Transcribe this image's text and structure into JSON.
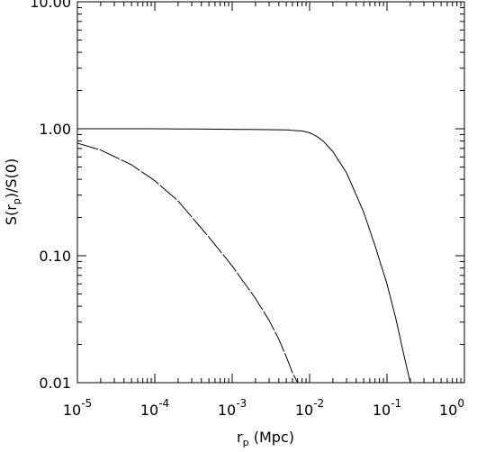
{
  "chart_data": {
    "type": "line",
    "title": "",
    "xlabel_main": "r",
    "xlabel_sub": "p",
    "xlabel_tail": " (Mpc)",
    "ylabel_lead": "S(r",
    "ylabel_sub": "p",
    "ylabel_tail": ")/S(0)",
    "xscale": "log",
    "yscale": "log",
    "xlim": [
      1e-05,
      1
    ],
    "ylim": [
      0.01,
      10
    ],
    "grid": false,
    "x_ticks": [
      1e-05,
      0.0001,
      0.001,
      0.01,
      0.1,
      1
    ],
    "x_tick_labels": [
      {
        "base": "10",
        "exp": "-5"
      },
      {
        "base": "10",
        "exp": "-4"
      },
      {
        "base": "10",
        "exp": "-3"
      },
      {
        "base": "10",
        "exp": "-2"
      },
      {
        "base": "10",
        "exp": "-1"
      },
      {
        "base": "10",
        "exp": "0"
      }
    ],
    "y_ticks": [
      0.01,
      0.1,
      1,
      10
    ],
    "y_tick_labels": [
      "0.01",
      "0.10",
      "1.00",
      "10.00"
    ],
    "series": [
      {
        "style": "solid",
        "x": [
          1e-05,
          0.0001,
          0.001,
          0.005,
          0.008,
          0.01,
          0.012,
          0.015,
          0.02,
          0.03,
          0.05,
          0.07,
          0.1,
          0.13,
          0.16,
          0.2
        ],
        "y": [
          1.0,
          1.0,
          0.99,
          0.98,
          0.96,
          0.93,
          0.88,
          0.8,
          0.66,
          0.45,
          0.22,
          0.12,
          0.06,
          0.032,
          0.018,
          0.01
        ]
      },
      {
        "style": "dashed",
        "x": [
          1e-05,
          2e-05,
          5e-05,
          0.0001,
          0.0002,
          0.0005,
          0.001,
          0.002,
          0.003,
          0.004,
          0.005,
          0.006,
          0.007
        ],
        "y": [
          0.77,
          0.68,
          0.52,
          0.39,
          0.27,
          0.14,
          0.083,
          0.046,
          0.031,
          0.022,
          0.016,
          0.012,
          0.01
        ]
      }
    ]
  }
}
